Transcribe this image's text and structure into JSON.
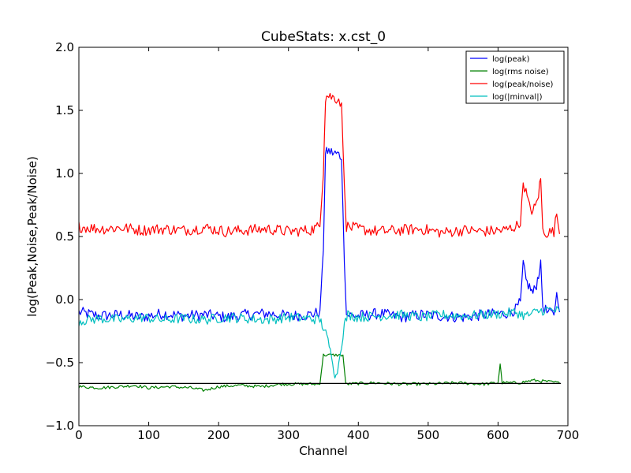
{
  "chart_data": {
    "type": "line",
    "title": "CubeStats: x.cst_0",
    "xlabel": "Channel",
    "ylabel": "log(Peak,Noise,Peak/Noise)",
    "xlim": [
      0,
      700
    ],
    "ylim": [
      -1.0,
      2.0
    ],
    "x_ticks": [
      "0",
      "100",
      "200",
      "300",
      "400",
      "500",
      "600",
      "700"
    ],
    "y_ticks": [
      "−1.0",
      "−0.5",
      "0.0",
      "0.5",
      "1.0",
      "1.5",
      "2.0"
    ],
    "grid": false,
    "legend_position": "top-right",
    "hline": {
      "y": -0.665,
      "color": "#000000"
    },
    "series": [
      {
        "name": "log(peak)",
        "color": "#0000ff",
        "points": [
          [
            0,
            -0.1
          ],
          [
            30,
            -0.13
          ],
          [
            60,
            -0.12
          ],
          [
            90,
            -0.14
          ],
          [
            120,
            -0.11
          ],
          [
            150,
            -0.13
          ],
          [
            180,
            -0.12
          ],
          [
            210,
            -0.14
          ],
          [
            240,
            -0.12
          ],
          [
            270,
            -0.11
          ],
          [
            300,
            -0.13
          ],
          [
            330,
            -0.12
          ],
          [
            345,
            -0.1
          ],
          [
            350,
            0.4
          ],
          [
            353,
            1.15
          ],
          [
            356,
            1.18
          ],
          [
            365,
            1.16
          ],
          [
            372,
            1.15
          ],
          [
            376,
            1.12
          ],
          [
            380,
            0.3
          ],
          [
            383,
            -0.12
          ],
          [
            400,
            -0.13
          ],
          [
            430,
            -0.11
          ],
          [
            460,
            -0.14
          ],
          [
            490,
            -0.12
          ],
          [
            520,
            -0.13
          ],
          [
            550,
            -0.14
          ],
          [
            580,
            -0.12
          ],
          [
            610,
            -0.11
          ],
          [
            625,
            -0.08
          ],
          [
            632,
            -0.02
          ],
          [
            636,
            0.28
          ],
          [
            640,
            0.15
          ],
          [
            645,
            0.1
          ],
          [
            650,
            0.05
          ],
          [
            655,
            0.12
          ],
          [
            658,
            0.2
          ],
          [
            661,
            0.3
          ],
          [
            664,
            -0.05
          ],
          [
            670,
            -0.1
          ],
          [
            680,
            -0.12
          ],
          [
            684,
            0.05
          ],
          [
            688,
            -0.1
          ]
        ]
      },
      {
        "name": "log(rms noise)",
        "color": "#008000",
        "points": [
          [
            0,
            -0.69
          ],
          [
            30,
            -0.7
          ],
          [
            60,
            -0.69
          ],
          [
            80,
            -0.68
          ],
          [
            100,
            -0.7
          ],
          [
            130,
            -0.69
          ],
          [
            160,
            -0.7
          ],
          [
            180,
            -0.72
          ],
          [
            200,
            -0.69
          ],
          [
            230,
            -0.68
          ],
          [
            260,
            -0.69
          ],
          [
            290,
            -0.67
          ],
          [
            320,
            -0.67
          ],
          [
            345,
            -0.67
          ],
          [
            350,
            -0.44
          ],
          [
            378,
            -0.44
          ],
          [
            382,
            -0.67
          ],
          [
            420,
            -0.66
          ],
          [
            460,
            -0.67
          ],
          [
            500,
            -0.67
          ],
          [
            540,
            -0.66
          ],
          [
            580,
            -0.67
          ],
          [
            600,
            -0.66
          ],
          [
            603,
            -0.51
          ],
          [
            606,
            -0.66
          ],
          [
            630,
            -0.66
          ],
          [
            650,
            -0.64
          ],
          [
            670,
            -0.65
          ],
          [
            688,
            -0.66
          ]
        ]
      },
      {
        "name": "log(peak/noise)",
        "color": "#ff0000",
        "points": [
          [
            0,
            0.58
          ],
          [
            30,
            0.56
          ],
          [
            60,
            0.57
          ],
          [
            90,
            0.55
          ],
          [
            120,
            0.56
          ],
          [
            150,
            0.55
          ],
          [
            180,
            0.57
          ],
          [
            210,
            0.54
          ],
          [
            240,
            0.55
          ],
          [
            270,
            0.56
          ],
          [
            300,
            0.54
          ],
          [
            330,
            0.55
          ],
          [
            345,
            0.58
          ],
          [
            350,
            1.0
          ],
          [
            353,
            1.6
          ],
          [
            356,
            1.62
          ],
          [
            365,
            1.6
          ],
          [
            372,
            1.59
          ],
          [
            376,
            1.55
          ],
          [
            380,
            0.9
          ],
          [
            383,
            0.58
          ],
          [
            400,
            0.56
          ],
          [
            430,
            0.54
          ],
          [
            460,
            0.55
          ],
          [
            490,
            0.56
          ],
          [
            520,
            0.53
          ],
          [
            550,
            0.55
          ],
          [
            580,
            0.54
          ],
          [
            610,
            0.55
          ],
          [
            625,
            0.58
          ],
          [
            632,
            0.6
          ],
          [
            636,
            0.94
          ],
          [
            640,
            0.85
          ],
          [
            645,
            0.73
          ],
          [
            650,
            0.7
          ],
          [
            655,
            0.76
          ],
          [
            658,
            0.84
          ],
          [
            661,
            0.96
          ],
          [
            664,
            0.55
          ],
          [
            670,
            0.53
          ],
          [
            680,
            0.54
          ],
          [
            684,
            0.68
          ],
          [
            688,
            0.52
          ]
        ]
      },
      {
        "name": "log(|minval|)",
        "color": "#00bfbf",
        "points": [
          [
            0,
            -0.17
          ],
          [
            30,
            -0.15
          ],
          [
            60,
            -0.16
          ],
          [
            90,
            -0.14
          ],
          [
            120,
            -0.16
          ],
          [
            150,
            -0.15
          ],
          [
            180,
            -0.16
          ],
          [
            210,
            -0.14
          ],
          [
            240,
            -0.15
          ],
          [
            270,
            -0.16
          ],
          [
            300,
            -0.14
          ],
          [
            330,
            -0.15
          ],
          [
            345,
            -0.16
          ],
          [
            350,
            -0.22
          ],
          [
            355,
            -0.3
          ],
          [
            360,
            -0.4
          ],
          [
            365,
            -0.55
          ],
          [
            368,
            -0.62
          ],
          [
            372,
            -0.5
          ],
          [
            376,
            -0.35
          ],
          [
            380,
            -0.2
          ],
          [
            385,
            -0.12
          ],
          [
            400,
            -0.14
          ],
          [
            430,
            -0.13
          ],
          [
            460,
            -0.12
          ],
          [
            490,
            -0.14
          ],
          [
            520,
            -0.12
          ],
          [
            550,
            -0.13
          ],
          [
            580,
            -0.12
          ],
          [
            610,
            -0.11
          ],
          [
            625,
            -0.1
          ],
          [
            640,
            -0.13
          ],
          [
            660,
            -0.09
          ],
          [
            670,
            -0.08
          ],
          [
            688,
            -0.09
          ]
        ]
      }
    ]
  }
}
